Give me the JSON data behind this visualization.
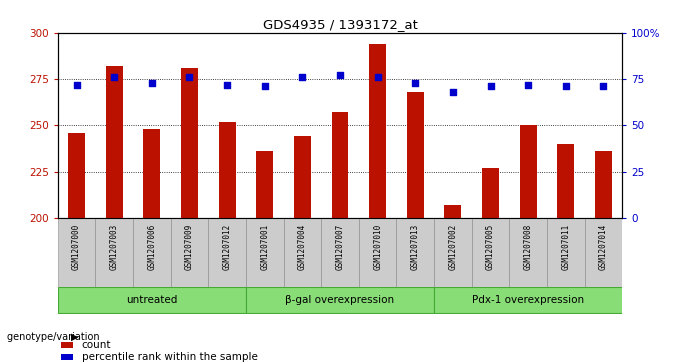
{
  "title": "GDS4935 / 1393172_at",
  "samples": [
    "GSM1207000",
    "GSM1207003",
    "GSM1207006",
    "GSM1207009",
    "GSM1207012",
    "GSM1207001",
    "GSM1207004",
    "GSM1207007",
    "GSM1207010",
    "GSM1207013",
    "GSM1207002",
    "GSM1207005",
    "GSM1207008",
    "GSM1207011",
    "GSM1207014"
  ],
  "counts": [
    246,
    282,
    248,
    281,
    252,
    236,
    244,
    257,
    294,
    268,
    207,
    227,
    250,
    240,
    236
  ],
  "percentiles": [
    72,
    76,
    73,
    76,
    72,
    71,
    76,
    77,
    76,
    73,
    68,
    71,
    72,
    71,
    71
  ],
  "bar_color": "#BB1100",
  "percentile_color": "#0000CC",
  "ylim_left": [
    200,
    300
  ],
  "ylim_right": [
    0,
    100
  ],
  "yticks_left": [
    200,
    225,
    250,
    275,
    300
  ],
  "yticks_right": [
    0,
    25,
    50,
    75,
    100
  ],
  "yticklabels_right": [
    "0",
    "25",
    "50",
    "75",
    "100%"
  ],
  "groups": [
    {
      "label": "untreated",
      "start": 0,
      "end": 5
    },
    {
      "label": "β-gal overexpression",
      "start": 5,
      "end": 10
    },
    {
      "label": "Pdx-1 overexpression",
      "start": 10,
      "end": 15
    }
  ],
  "group_color": "#88DD77",
  "group_border_color": "#44AA33",
  "sample_box_color": "#CCCCCC",
  "legend_count_label": "count",
  "legend_percentile_label": "percentile rank within the sample",
  "genotype_label": "genotype/variation",
  "background_color": "#FFFFFF"
}
